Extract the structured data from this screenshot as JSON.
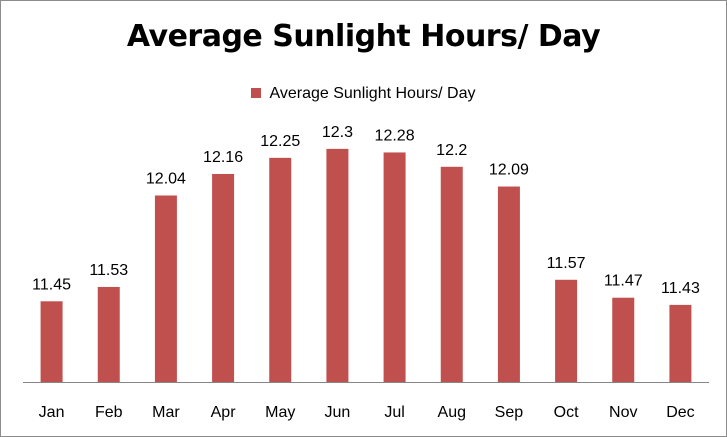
{
  "chart_data": {
    "type": "bar",
    "title": "Average Sunlight Hours/ Day",
    "xlabel": "",
    "ylabel": "",
    "categories": [
      "Jan",
      "Feb",
      "Mar",
      "Apr",
      "May",
      "Jun",
      "Jul",
      "Aug",
      "Sep",
      "Oct",
      "Nov",
      "Dec"
    ],
    "series": [
      {
        "name": "Average Sunlight Hours/ Day",
        "values": [
          11.45,
          11.53,
          12.04,
          12.16,
          12.25,
          12.3,
          12.28,
          12.2,
          12.09,
          11.57,
          11.47,
          11.43
        ],
        "labels": [
          "11.45",
          "11.53",
          "12.04",
          "12.16",
          "12.25",
          "12.3",
          "12.28",
          "12.2",
          "12.09",
          "11.57",
          "11.47",
          "11.43"
        ],
        "color": "#c0504d"
      }
    ],
    "ylim": [
      11.0,
      12.5
    ],
    "grid": false,
    "legend_position": "top"
  }
}
